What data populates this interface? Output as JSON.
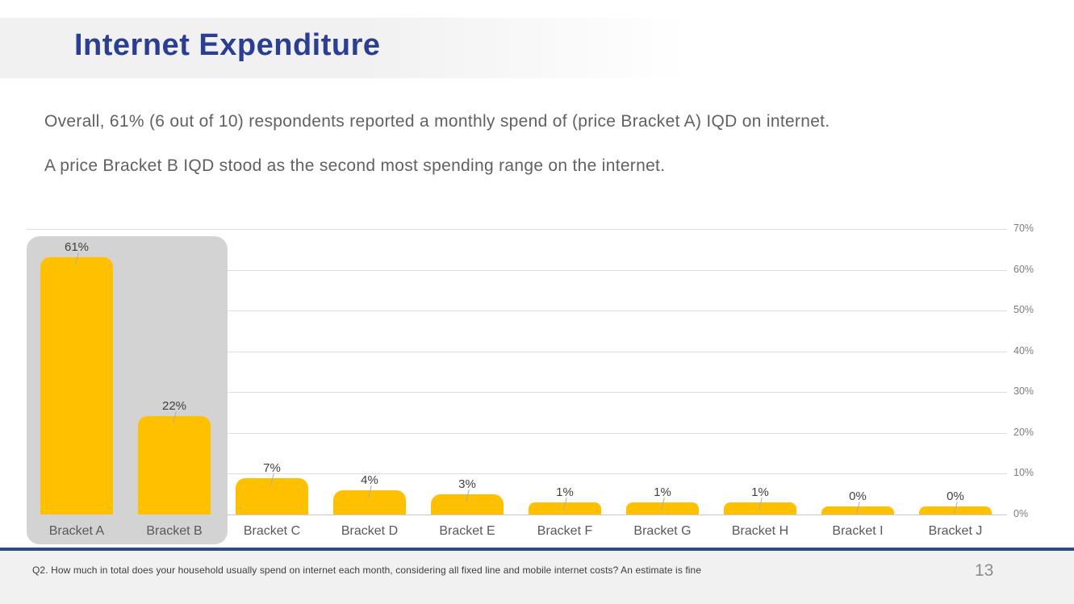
{
  "header": {
    "title": "Internet Expenditure"
  },
  "summary": {
    "line1": "Overall, 61% (6 out of 10) respondents reported a monthly spend of (price Bracket A) IQD on internet.",
    "line2": "A price Bracket B IQD stood as the second most spending range on the internet."
  },
  "chart_data": {
    "type": "bar",
    "title": "",
    "xlabel": "",
    "ylabel": "",
    "categories": [
      "Bracket A",
      "Bracket B",
      "Bracket C",
      "Bracket D",
      "Bracket E",
      "Bracket F",
      "Bracket G",
      "Bracket H",
      "Bracket I",
      "Bracket J"
    ],
    "values": [
      61,
      22,
      7,
      4,
      3,
      1,
      1,
      1,
      0,
      0
    ],
    "data_labels": [
      "61%",
      "22%",
      "7%",
      "4%",
      "3%",
      "1%",
      "1%",
      "1%",
      "0%",
      "0%"
    ],
    "ylim": [
      0,
      70
    ],
    "yticks": [
      "0%",
      "10%",
      "20%",
      "30%",
      "40%",
      "50%",
      "60%",
      "70%"
    ],
    "grid": true,
    "axis_side": "right",
    "legend": "none",
    "bar_color": "#FFC000",
    "highlight": {
      "categories": [
        "Bracket A",
        "Bracket B"
      ],
      "box_color": "#d3d3d3"
    }
  },
  "footer": {
    "footnote": "Q2. How much in total does your household usually spend on internet each month, considering all fixed line and mobile internet costs? An estimate is fine",
    "page_number": "13"
  },
  "colors": {
    "title_blue": "#2b3f92",
    "divider_navy": "#2b4a8b",
    "bar_yellow": "#FFC000",
    "highlight_gray": "#d3d3d3",
    "header_band_gray": "#f1f1f2"
  }
}
